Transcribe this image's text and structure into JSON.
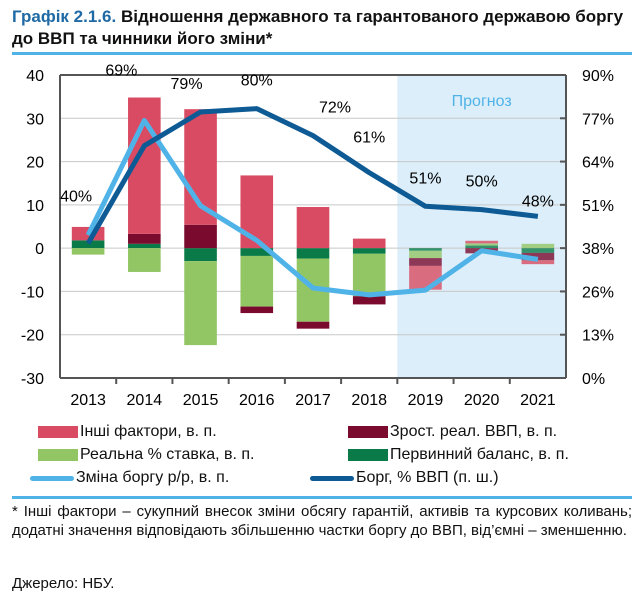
{
  "title": {
    "number": "Графік 2.1.6.",
    "text": "Відношення державного та гарантованого державою боргу до ВВП та чинники його зміни*"
  },
  "chart_data": {
    "type": "bar",
    "categories": [
      "2013",
      "2014",
      "2015",
      "2016",
      "2017",
      "2018",
      "2019",
      "2020",
      "2021"
    ],
    "ylim": [
      -30,
      40
    ],
    "yticks": [
      "40",
      "30",
      "20",
      "10",
      "0",
      "-10",
      "-20",
      "-30"
    ],
    "y2lim": [
      0,
      90
    ],
    "y2ticks": [
      "90%",
      "77%",
      "64%",
      "51%",
      "38%",
      "26%",
      "13%",
      "0%"
    ],
    "grid": true,
    "forecast": {
      "label": "Прогноз",
      "from": "2019",
      "to": "2021"
    },
    "series": [
      {
        "name": "Інші фактори, в. п.",
        "kind": "bar",
        "color": "#d94b62",
        "values": [
          3.1,
          31.5,
          26.7,
          16.8,
          9.5,
          2.2,
          -5.5,
          0.6,
          -0.9
        ]
      },
      {
        "name": "Зрост. реал. ВВП, в. п.",
        "kind": "bar",
        "color": "#7a0a2e",
        "values": [
          0,
          2.3,
          5.4,
          -1.5,
          -1.6,
          -1.9,
          -1.8,
          -1.2,
          -1.7
        ]
      },
      {
        "name": "Реальна % ставка, в. п.",
        "kind": "bar",
        "color": "#92c665",
        "values": [
          -1.5,
          -5.5,
          -19.4,
          -11.7,
          -14.6,
          -9.8,
          -1.7,
          0.5,
          1.0
        ]
      },
      {
        "name": "Первинний баланс, в. п.",
        "kind": "bar",
        "color": "#0a7a48",
        "values": [
          1.8,
          1.0,
          -3.0,
          -1.8,
          -2.4,
          -1.3,
          -0.6,
          0.6,
          -1.1
        ]
      },
      {
        "name": "Зміна боргу р/р, в. п.",
        "kind": "line",
        "color": "#4fb3e8",
        "values": [
          3.0,
          29.5,
          9.8,
          1.8,
          -9.2,
          -10.8,
          -9.7,
          -0.6,
          -2.6
        ]
      },
      {
        "name": "Борг, % ВВП (п. ш.)",
        "kind": "line",
        "axis": "right",
        "color": "#0d5a94",
        "values": [
          40,
          69,
          79,
          80,
          72,
          61,
          51,
          50,
          48
        ],
        "labels": [
          "40%",
          "69%",
          "79%",
          "80%",
          "72%",
          "61%",
          "51%",
          "50%",
          "48%"
        ]
      }
    ]
  },
  "note": "* Інші фактори – сукупний внесок зміни обсягу гарантій, активів та курсових коливань; додатні значення відповідають збільшенню частки боргу до ВВП, від’ємні – зменшенню.",
  "source": "Джерело: НБУ."
}
